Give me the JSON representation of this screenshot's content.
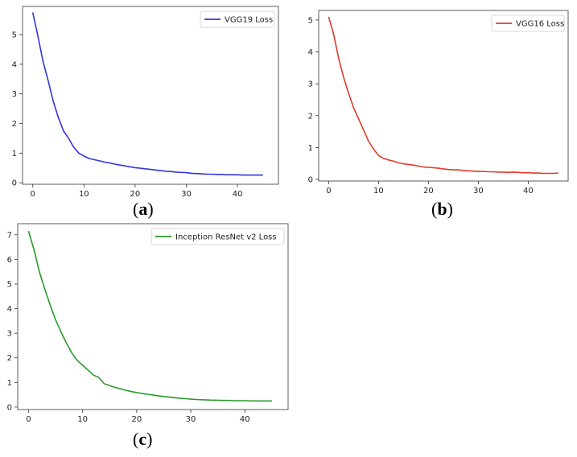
{
  "chart_data": [
    {
      "type": "line",
      "caption_label": "a",
      "xlim": [
        -2,
        48
      ],
      "ylim": [
        -0.05,
        5.95
      ],
      "x_ticks": [
        0,
        10,
        20,
        30,
        40
      ],
      "y_ticks": [
        0,
        1,
        2,
        3,
        4,
        5
      ],
      "legend_position": "top-right",
      "grid": false,
      "series": [
        {
          "name": "VGG19 Loss",
          "color": "#3333dd",
          "x": [
            0,
            1,
            2,
            3,
            4,
            5,
            6,
            7,
            8,
            9,
            10,
            11,
            12,
            13,
            14,
            15,
            16,
            17,
            18,
            19,
            20,
            21,
            22,
            23,
            24,
            25,
            26,
            27,
            28,
            29,
            30,
            31,
            32,
            33,
            34,
            35,
            36,
            37,
            38,
            39,
            40,
            41,
            42,
            43,
            44,
            45
          ],
          "y": [
            5.75,
            4.95,
            4.1,
            3.45,
            2.75,
            2.2,
            1.75,
            1.5,
            1.2,
            1.0,
            0.9,
            0.82,
            0.78,
            0.74,
            0.7,
            0.67,
            0.63,
            0.6,
            0.57,
            0.54,
            0.51,
            0.49,
            0.47,
            0.45,
            0.43,
            0.41,
            0.39,
            0.38,
            0.36,
            0.35,
            0.34,
            0.32,
            0.31,
            0.3,
            0.29,
            0.29,
            0.28,
            0.28,
            0.27,
            0.27,
            0.27,
            0.26,
            0.26,
            0.26,
            0.26,
            0.26
          ]
        }
      ]
    },
    {
      "type": "line",
      "caption_label": "b",
      "xlim": [
        -2,
        48
      ],
      "ylim": [
        -0.05,
        5.3
      ],
      "x_ticks": [
        0,
        10,
        20,
        30,
        40
      ],
      "y_ticks": [
        0,
        1,
        2,
        3,
        4,
        5
      ],
      "legend_position": "top-right",
      "grid": false,
      "series": [
        {
          "name": "VGG16 Loss",
          "color": "#e03a2a",
          "x": [
            0,
            1,
            2,
            3,
            4,
            5,
            6,
            7,
            8,
            9,
            10,
            11,
            12,
            13,
            14,
            15,
            16,
            17,
            18,
            19,
            20,
            21,
            22,
            23,
            24,
            25,
            26,
            27,
            28,
            29,
            30,
            31,
            32,
            33,
            34,
            35,
            36,
            37,
            38,
            39,
            40,
            41,
            42,
            43,
            44,
            45,
            46
          ],
          "y": [
            5.1,
            4.55,
            3.8,
            3.2,
            2.7,
            2.25,
            1.9,
            1.55,
            1.2,
            0.95,
            0.75,
            0.66,
            0.61,
            0.57,
            0.52,
            0.49,
            0.47,
            0.45,
            0.42,
            0.39,
            0.38,
            0.37,
            0.35,
            0.33,
            0.31,
            0.3,
            0.3,
            0.28,
            0.27,
            0.26,
            0.25,
            0.25,
            0.24,
            0.24,
            0.23,
            0.23,
            0.22,
            0.23,
            0.22,
            0.21,
            0.21,
            0.2,
            0.2,
            0.19,
            0.19,
            0.19,
            0.2
          ]
        }
      ]
    },
    {
      "type": "line",
      "caption_label": "c",
      "xlim": [
        -2,
        48
      ],
      "ylim": [
        -0.1,
        7.45
      ],
      "x_ticks": [
        0,
        10,
        20,
        30,
        40
      ],
      "y_ticks": [
        0,
        1,
        2,
        3,
        4,
        5,
        6,
        7
      ],
      "legend_position": "top-right",
      "grid": false,
      "series": [
        {
          "name": "Inception ResNet v2 Loss",
          "color": "#2a9a2a",
          "x": [
            0,
            1,
            2,
            3,
            4,
            5,
            6,
            7,
            8,
            9,
            10,
            11,
            12,
            13,
            14,
            15,
            16,
            17,
            18,
            19,
            20,
            21,
            22,
            23,
            24,
            25,
            26,
            27,
            28,
            29,
            30,
            31,
            32,
            33,
            34,
            35,
            36,
            37,
            38,
            39,
            40,
            41,
            42,
            43,
            44,
            45
          ],
          "y": [
            7.15,
            6.4,
            5.5,
            4.8,
            4.15,
            3.55,
            3.05,
            2.6,
            2.2,
            1.9,
            1.7,
            1.5,
            1.3,
            1.2,
            0.95,
            0.87,
            0.8,
            0.74,
            0.68,
            0.63,
            0.59,
            0.55,
            0.52,
            0.49,
            0.46,
            0.43,
            0.41,
            0.38,
            0.36,
            0.34,
            0.32,
            0.31,
            0.3,
            0.29,
            0.28,
            0.28,
            0.27,
            0.27,
            0.26,
            0.26,
            0.26,
            0.25,
            0.25,
            0.25,
            0.25,
            0.25
          ]
        }
      ]
    }
  ]
}
